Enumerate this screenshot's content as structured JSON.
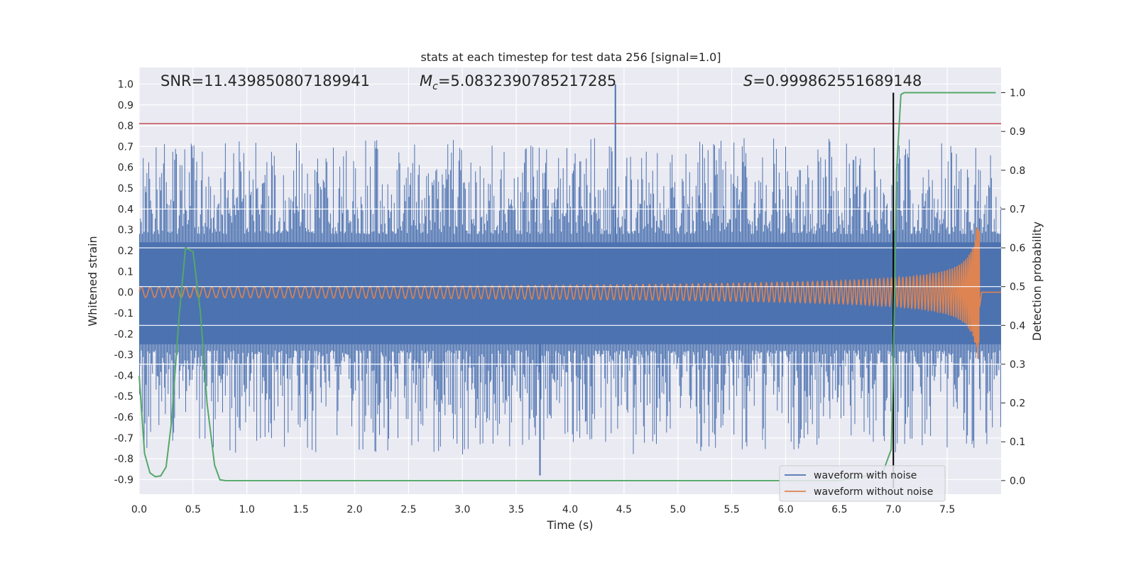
{
  "chart_data": {
    "type": "line",
    "title": "stats at each timestep for test data 256 [signal=1.0]",
    "xlabel": "Time (s)",
    "ylabel": "Whitened strain",
    "y2label": "Detection probability",
    "xlim": [
      0.0,
      8.0
    ],
    "ylim": [
      -0.97,
      1.08
    ],
    "y2lim": [
      -0.035,
      1.065
    ],
    "xticks": [
      "0.0",
      "0.5",
      "1.0",
      "1.5",
      "2.0",
      "2.5",
      "3.0",
      "3.5",
      "4.0",
      "4.5",
      "5.0",
      "5.5",
      "6.0",
      "6.5",
      "7.0",
      "7.5"
    ],
    "yticks": [
      "1.0",
      "0.9",
      "0.8",
      "0.7",
      "0.6",
      "0.5",
      "0.4",
      "0.3",
      "0.2",
      "0.1",
      "0.0",
      "-0.1",
      "-0.2",
      "-0.3",
      "-0.4",
      "-0.5",
      "-0.6",
      "-0.7",
      "-0.8",
      "-0.9"
    ],
    "y2ticks": [
      "1.0",
      "0.9",
      "0.8",
      "0.7",
      "0.6",
      "0.5",
      "0.4",
      "0.3",
      "0.2",
      "0.1",
      "0.0"
    ],
    "annotations": {
      "snr": "SNR=11.439850807189941",
      "mc_symbol": "M",
      "mc_sub": "c",
      "mc_value": "=5.0832390785217285",
      "s_symbol": "S",
      "s_value": "=0.999862551689148"
    },
    "threshold": {
      "value": 0.81,
      "color": "#c44e52"
    },
    "event_time": 7.0,
    "legend": [
      "waveform with noise",
      "waveform without noise"
    ],
    "series": [
      {
        "name": "waveform with noise",
        "color": "#4c72b0",
        "envelope": {
          "upper": 0.24,
          "lower": -0.25
        },
        "max_spike": {
          "x": 4.42,
          "y": 1.0
        },
        "min_spike": {
          "x": 3.72,
          "y": -0.88
        }
      },
      {
        "name": "waveform without noise",
        "color": "#dd8452",
        "start_amplitude": 0.025,
        "peak_amplitude": 0.32,
        "merger_time": 7.8,
        "chirp": true
      },
      {
        "name": "detection probability",
        "color": "#55a868",
        "axis": "right",
        "x": [
          0.0,
          0.05,
          0.1,
          0.15,
          0.2,
          0.25,
          0.3,
          0.37,
          0.43,
          0.5,
          0.57,
          0.63,
          0.7,
          0.75,
          0.8,
          0.85,
          1.0,
          2.0,
          3.0,
          4.0,
          5.0,
          6.0,
          6.5,
          6.9,
          6.98,
          7.0,
          7.03,
          7.07,
          7.1,
          7.2,
          7.5,
          7.95
        ],
        "y": [
          0.27,
          0.07,
          0.02,
          0.01,
          0.012,
          0.035,
          0.15,
          0.42,
          0.6,
          0.59,
          0.43,
          0.2,
          0.04,
          0.002,
          0.0,
          0.0,
          0.0,
          0.0,
          0.0,
          0.0,
          0.0,
          0.0,
          0.0,
          0.02,
          0.08,
          0.3,
          0.8,
          0.995,
          1.0,
          1.0,
          1.0,
          1.0
        ]
      }
    ]
  }
}
